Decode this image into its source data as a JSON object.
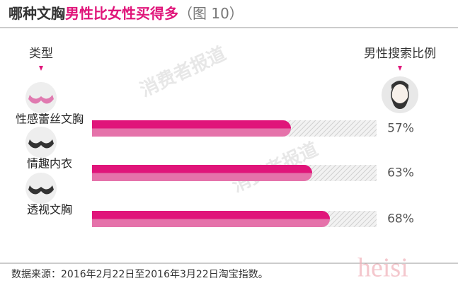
{
  "chart_data": {
    "type": "bar",
    "title": "哪种文胸",
    "title_highlight": "男性比女性买得多",
    "figure_label": "（图 10）",
    "category_header": "类型",
    "value_header": "男性搜索比例",
    "categories": [
      "性感蕾丝文胸",
      "情趣内衣",
      "透视文胸"
    ],
    "values": [
      57,
      63,
      68
    ],
    "value_labels": [
      "57%",
      "63%",
      "68%"
    ],
    "color": "#e0157a",
    "color_light": "#e572aa",
    "source": "数据来源：2016年2月22日至2016年3月22日淘宝指数。",
    "watermarks": [
      "消费者报道",
      "heisi"
    ]
  }
}
